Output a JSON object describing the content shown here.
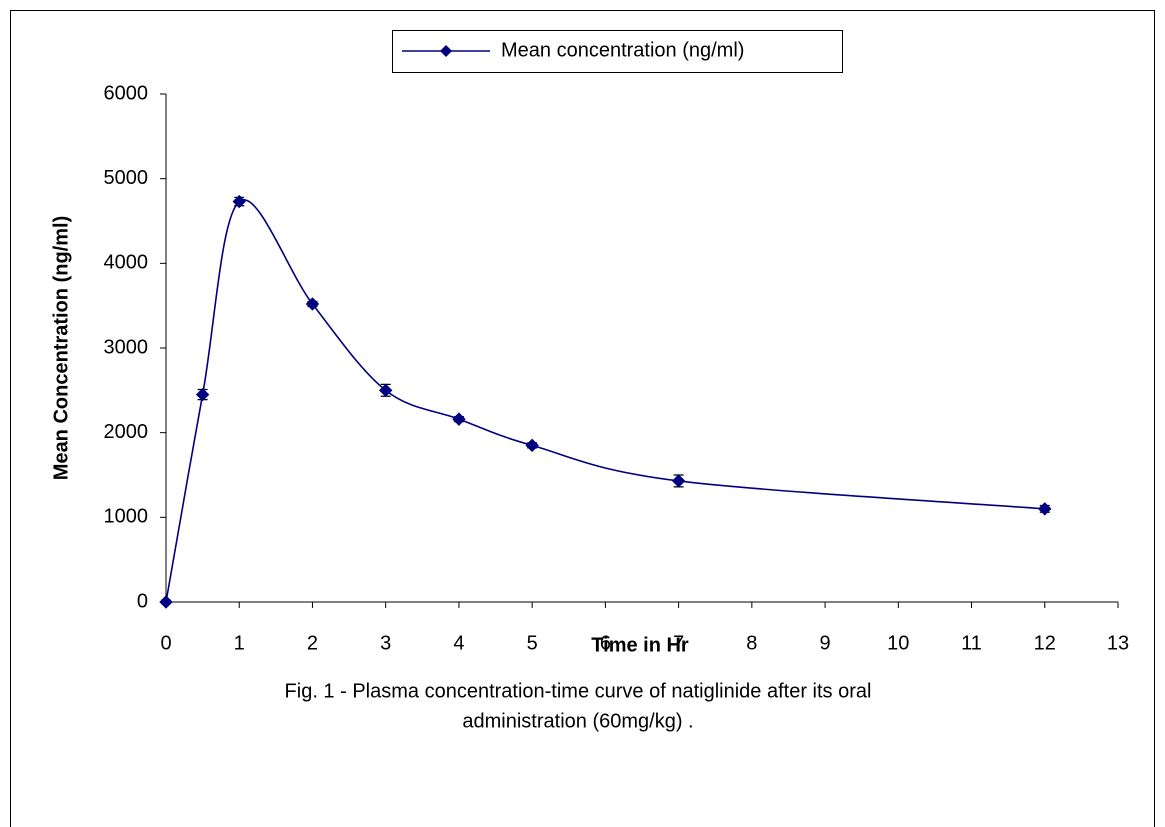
{
  "chart_data": {
    "type": "line",
    "legend": "top-center",
    "x_label": "Time in Hr",
    "y_label": "Mean Concentration (ng/ml)",
    "caption": [
      "Fig. 1 - Plasma concentration-time curve of natiglinide after its oral",
      "administration (60mg/kg) ."
    ],
    "x": [
      0,
      0.5,
      1,
      2,
      3,
      4,
      5,
      7,
      12
    ],
    "series": [
      {
        "name": "Mean concentration (ng/ml)",
        "color": "#000080",
        "values": [
          0,
          2450,
          4730,
          3520,
          2500,
          2160,
          1850,
          1430,
          1100
        ],
        "errors": [
          20,
          60,
          50,
          30,
          70,
          30,
          30,
          70,
          40
        ]
      }
    ],
    "xlim": [
      0,
      13
    ],
    "xticks": [
      0,
      1,
      2,
      3,
      4,
      5,
      6,
      7,
      8,
      9,
      10,
      11,
      12,
      13
    ],
    "ylim": [
      0,
      6000
    ],
    "yticks": [
      0,
      1000,
      2000,
      3000,
      4000,
      5000,
      6000
    ],
    "smooth": true,
    "grid": false
  }
}
